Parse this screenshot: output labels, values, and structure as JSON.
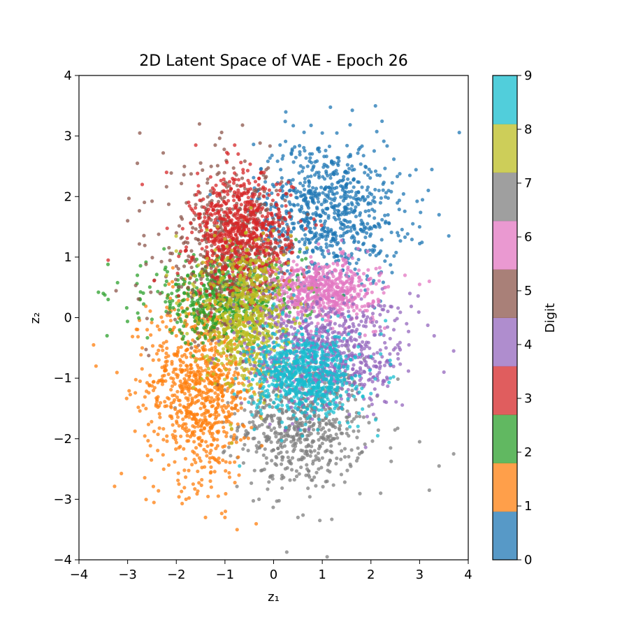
{
  "chart_data": {
    "type": "scatter",
    "title": "2D Latent Space of VAE - Epoch 26",
    "xlabel": "z₁",
    "ylabel": "z₂",
    "xlim": [
      -4,
      4
    ],
    "ylim": [
      -4,
      4
    ],
    "x_ticks": [
      "−4",
      "−3",
      "−2",
      "−1",
      "0",
      "1",
      "2",
      "3",
      "4"
    ],
    "y_ticks": [
      "−4",
      "−3",
      "−2",
      "−1",
      "0",
      "1",
      "2",
      "3",
      "4"
    ],
    "grid": false,
    "colorbar": {
      "label": "Digit",
      "ticks": [
        "0",
        "1",
        "2",
        "3",
        "4",
        "5",
        "6",
        "7",
        "8",
        "9"
      ],
      "colormap": [
        "#1f77b4",
        "#ff7f0e",
        "#2ca02c",
        "#d62728",
        "#9467bd",
        "#8c564b",
        "#e377c2",
        "#7f7f7f",
        "#bcbd22",
        "#17becf"
      ]
    },
    "marker_alpha": 0.75,
    "series": [
      {
        "digit": 0,
        "center": [
          1.1,
          1.75
        ],
        "spread": [
          0.75,
          0.6
        ],
        "points_shown": 800,
        "sample_points": [
          [
            1.0,
            3.05
          ],
          [
            1.3,
            3.05
          ],
          [
            3.4,
            1.7
          ],
          [
            3.6,
            1.35
          ],
          [
            2.8,
            2.35
          ],
          [
            0.3,
            1.3
          ],
          [
            1.5,
            2.2
          ],
          [
            2.2,
            1.1
          ],
          [
            0.7,
            2.5
          ],
          [
            3.0,
            1.5
          ]
        ]
      },
      {
        "digit": 1,
        "center": [
          -1.5,
          -1.1
        ],
        "spread": [
          0.55,
          0.8
        ],
        "points_shown": 900,
        "sample_points": [
          [
            -3.7,
            -0.45
          ],
          [
            -3.65,
            -0.8
          ],
          [
            -1.4,
            -3.3
          ],
          [
            -1.0,
            -3.3
          ],
          [
            -1.8,
            -3.0
          ],
          [
            -0.7,
            -0.4
          ],
          [
            -2.7,
            -0.5
          ],
          [
            -1.3,
            -2.7
          ],
          [
            -1.5,
            -1.5
          ],
          [
            -2.0,
            -0.3
          ]
        ]
      },
      {
        "digit": 2,
        "center": [
          -1.0,
          0.3
        ],
        "spread": [
          0.8,
          0.35
        ],
        "points_shown": 600,
        "sample_points": [
          [
            -3.6,
            0.42
          ],
          [
            -3.5,
            0.4
          ],
          [
            -3.4,
            0.3
          ],
          [
            -2.8,
            0.7
          ],
          [
            -2.2,
            0.6
          ],
          [
            0.2,
            0.3
          ],
          [
            -1.5,
            0.2
          ],
          [
            -0.5,
            0.4
          ]
        ]
      },
      {
        "digit": 3,
        "center": [
          -0.65,
          1.35
        ],
        "spread": [
          0.5,
          0.5
        ],
        "points_shown": 750,
        "sample_points": [
          [
            -0.8,
            2.85
          ],
          [
            -1.6,
            2.85
          ],
          [
            -2.7,
            2.2
          ],
          [
            -3.4,
            0.95
          ],
          [
            -0.3,
            2.3
          ],
          [
            -1.0,
            0.8
          ],
          [
            0.0,
            1.0
          ],
          [
            -2.2,
            2.4
          ]
        ]
      },
      {
        "digit": 4,
        "center": [
          1.1,
          -0.6
        ],
        "spread": [
          0.8,
          0.45
        ],
        "points_shown": 700,
        "sample_points": [
          [
            3.7,
            -0.55
          ],
          [
            3.5,
            -0.9
          ],
          [
            3.3,
            -0.3
          ],
          [
            2.8,
            0.4
          ],
          [
            0.0,
            -0.7
          ],
          [
            1.8,
            -1.0
          ],
          [
            2.5,
            -0.5
          ]
        ]
      },
      {
        "digit": 5,
        "center": [
          -0.9,
          1.1
        ],
        "spread": [
          0.7,
          0.7
        ],
        "points_shown": 500,
        "sample_points": [
          [
            -2.75,
            3.05
          ],
          [
            -2.8,
            2.55
          ],
          [
            -1.2,
            2.85
          ],
          [
            -3.0,
            1.6
          ],
          [
            -0.6,
            -0.6
          ],
          [
            -0.4,
            2.1
          ]
        ]
      },
      {
        "digit": 6,
        "center": [
          1.0,
          0.45
        ],
        "spread": [
          0.55,
          0.25
        ],
        "points_shown": 600,
        "sample_points": [
          [
            3.2,
            0.6
          ],
          [
            3.0,
            0.55
          ],
          [
            2.7,
            0.7
          ],
          [
            0.5,
            0.3
          ],
          [
            1.5,
            0.4
          ],
          [
            2.3,
            0.5
          ]
        ]
      },
      {
        "digit": 7,
        "center": [
          0.6,
          -1.75
        ],
        "spread": [
          0.65,
          0.55
        ],
        "points_shown": 650,
        "sample_points": [
          [
            1.1,
            -3.95
          ],
          [
            0.95,
            -3.35
          ],
          [
            0.5,
            -3.3
          ],
          [
            3.2,
            -2.85
          ],
          [
            3.4,
            -2.45
          ],
          [
            3.7,
            -2.25
          ],
          [
            -0.3,
            -3.0
          ],
          [
            2.2,
            -2.9
          ],
          [
            3.0,
            -2.05
          ]
        ]
      },
      {
        "digit": 8,
        "center": [
          -0.55,
          0.05
        ],
        "spread": [
          0.45,
          0.6
        ],
        "points_shown": 650,
        "sample_points": [
          [
            -2.2,
            0.7
          ],
          [
            -2.0,
            1.1
          ],
          [
            -0.5,
            -1.2
          ],
          [
            0.1,
            -1.3
          ],
          [
            -1.0,
            1.3
          ],
          [
            0.3,
            0.5
          ]
        ]
      },
      {
        "digit": 9,
        "center": [
          0.65,
          -0.95
        ],
        "spread": [
          0.55,
          0.35
        ],
        "points_shown": 700,
        "sample_points": [
          [
            -0.7,
            -2.45
          ],
          [
            2.3,
            -0.05
          ],
          [
            2.2,
            -0.6
          ],
          [
            0.0,
            -1.4
          ],
          [
            1.3,
            -1.2
          ],
          [
            -0.2,
            -0.9
          ]
        ]
      }
    ]
  }
}
